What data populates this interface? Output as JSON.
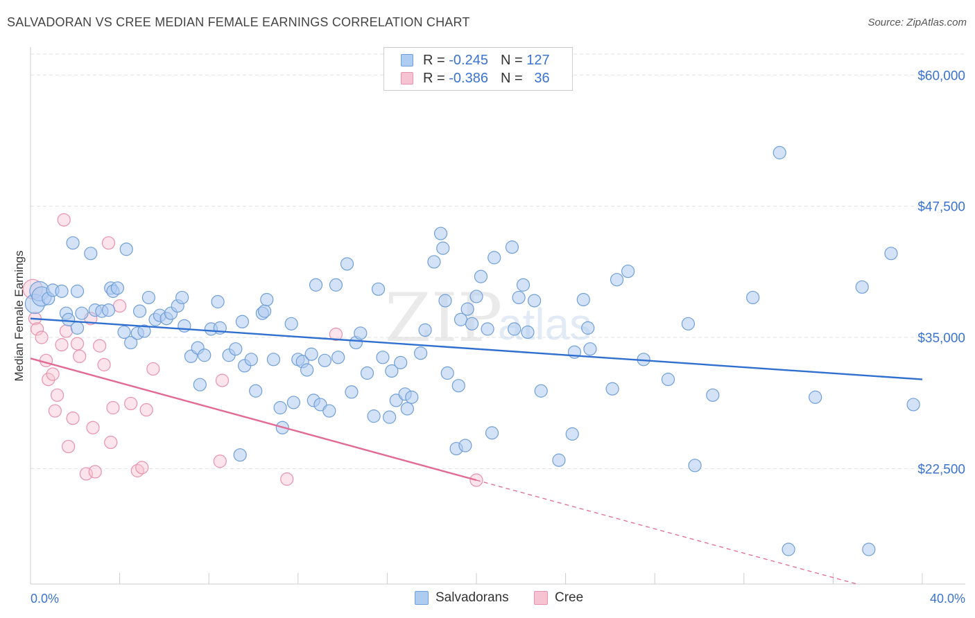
{
  "title": "SALVADORAN VS CREE MEDIAN FEMALE EARNINGS CORRELATION CHART",
  "source": "Source: ZipAtlas.com",
  "watermark": {
    "zip": "ZIP",
    "atlas": "atlas"
  },
  "colors": {
    "blue_fill": "#aecbf0",
    "blue_stroke": "#6f9fd8",
    "blue_line": "#2f6fcf",
    "pink_fill": "#f6c3d3",
    "pink_stroke": "#e991ad",
    "pink_line": "#e26a93",
    "tick_text": "#3a73d0",
    "grid": "#e1e1e1"
  },
  "legend": {
    "rows": [
      {
        "r_label": "R =",
        "r_value": "-0.245",
        "n_label": "N =",
        "n_value": "127",
        "color": "blue"
      },
      {
        "r_label": "R =",
        "r_value": "-0.386",
        "n_label": "N =",
        "n_value": "36",
        "color": "pink"
      }
    ]
  },
  "bottom_legend": {
    "salvadorans": "Salvadorans",
    "cree": "Cree"
  },
  "chart_data": {
    "type": "scatter",
    "title": "SALVADORAN VS CREE MEDIAN FEMALE EARNINGS CORRELATION CHART",
    "xlabel": "",
    "ylabel": "Median Female Earnings",
    "xlim": [
      0,
      40
    ],
    "ylim": [
      11500,
      62000
    ],
    "x_tick_labels": [
      "0.0%",
      "40.0%"
    ],
    "y_ticks": [
      22500,
      35000,
      47500,
      60000
    ],
    "y_tick_labels": [
      "$22,500",
      "$35,000",
      "$47,500",
      "$60,000"
    ],
    "grid": true,
    "legend_position": "top-center",
    "series": [
      {
        "name": "Salvadorans",
        "r": -0.245,
        "n": 127,
        "trend": {
          "x": [
            0,
            40
          ],
          "y": [
            36800,
            31000
          ]
        },
        "points": [
          [
            0.2,
            38200
          ],
          [
            0.4,
            39400
          ],
          [
            0.5,
            38900
          ],
          [
            0.8,
            38700
          ],
          [
            1.0,
            39500
          ],
          [
            1.4,
            39400
          ],
          [
            1.6,
            37300
          ],
          [
            1.7,
            36700
          ],
          [
            1.9,
            44000
          ],
          [
            2.1,
            35900
          ],
          [
            2.1,
            39400
          ],
          [
            2.3,
            37300
          ],
          [
            2.7,
            43000
          ],
          [
            2.9,
            37600
          ],
          [
            3.2,
            37500
          ],
          [
            3.5,
            37600
          ],
          [
            3.6,
            39700
          ],
          [
            3.7,
            39400
          ],
          [
            3.9,
            39700
          ],
          [
            4.2,
            35500
          ],
          [
            4.3,
            43400
          ],
          [
            4.5,
            34500
          ],
          [
            4.8,
            35400
          ],
          [
            4.9,
            37500
          ],
          [
            5.1,
            35600
          ],
          [
            5.3,
            38800
          ],
          [
            5.6,
            36700
          ],
          [
            5.8,
            37100
          ],
          [
            6.1,
            36800
          ],
          [
            6.3,
            37300
          ],
          [
            6.6,
            38000
          ],
          [
            6.8,
            38800
          ],
          [
            6.9,
            36100
          ],
          [
            7.2,
            33200
          ],
          [
            7.5,
            34000
          ],
          [
            7.6,
            30500
          ],
          [
            7.8,
            33300
          ],
          [
            8.1,
            35800
          ],
          [
            8.4,
            38400
          ],
          [
            8.5,
            35900
          ],
          [
            8.9,
            33300
          ],
          [
            9.2,
            33900
          ],
          [
            9.4,
            23800
          ],
          [
            9.5,
            36500
          ],
          [
            9.6,
            32300
          ],
          [
            9.9,
            32900
          ],
          [
            10.1,
            29900
          ],
          [
            10.4,
            37300
          ],
          [
            10.5,
            37500
          ],
          [
            10.6,
            38600
          ],
          [
            10.9,
            32900
          ],
          [
            11.2,
            28300
          ],
          [
            11.3,
            26400
          ],
          [
            11.7,
            36300
          ],
          [
            11.8,
            28800
          ],
          [
            12.0,
            32900
          ],
          [
            12.2,
            32700
          ],
          [
            12.4,
            31900
          ],
          [
            12.6,
            33400
          ],
          [
            12.7,
            29000
          ],
          [
            12.8,
            40000
          ],
          [
            13.0,
            28600
          ],
          [
            13.2,
            32800
          ],
          [
            13.4,
            28000
          ],
          [
            13.7,
            40000
          ],
          [
            13.8,
            33100
          ],
          [
            14.2,
            42000
          ],
          [
            14.4,
            29800
          ],
          [
            14.6,
            34500
          ],
          [
            14.8,
            35400
          ],
          [
            15.1,
            31600
          ],
          [
            15.4,
            27500
          ],
          [
            15.6,
            39600
          ],
          [
            15.8,
            33100
          ],
          [
            16.1,
            27400
          ],
          [
            16.2,
            31800
          ],
          [
            16.4,
            29000
          ],
          [
            16.6,
            32600
          ],
          [
            16.8,
            29600
          ],
          [
            16.9,
            28200
          ],
          [
            17.1,
            29300
          ],
          [
            17.5,
            33500
          ],
          [
            17.7,
            35700
          ],
          [
            18.1,
            42200
          ],
          [
            18.4,
            44900
          ],
          [
            18.5,
            43500
          ],
          [
            18.6,
            38500
          ],
          [
            18.7,
            31600
          ],
          [
            19.1,
            24400
          ],
          [
            19.2,
            30400
          ],
          [
            19.3,
            36700
          ],
          [
            19.5,
            24700
          ],
          [
            19.6,
            37700
          ],
          [
            19.8,
            36300
          ],
          [
            20.0,
            38900
          ],
          [
            20.2,
            40800
          ],
          [
            20.5,
            35800
          ],
          [
            20.7,
            25900
          ],
          [
            20.8,
            42600
          ],
          [
            21.6,
            43600
          ],
          [
            21.7,
            35800
          ],
          [
            21.9,
            38800
          ],
          [
            22.1,
            40000
          ],
          [
            22.3,
            35500
          ],
          [
            22.6,
            38500
          ],
          [
            22.9,
            29900
          ],
          [
            23.7,
            23300
          ],
          [
            24.3,
            25800
          ],
          [
            24.4,
            33600
          ],
          [
            24.8,
            38600
          ],
          [
            25.0,
            35900
          ],
          [
            25.1,
            33900
          ],
          [
            26.1,
            30100
          ],
          [
            26.3,
            40500
          ],
          [
            26.8,
            41300
          ],
          [
            27.5,
            32900
          ],
          [
            28.6,
            31000
          ],
          [
            29.5,
            36300
          ],
          [
            29.8,
            22800
          ],
          [
            30.6,
            29500
          ],
          [
            32.4,
            38800
          ],
          [
            33.6,
            52600
          ],
          [
            34.0,
            14800
          ],
          [
            35.2,
            29300
          ],
          [
            37.6,
            14800
          ],
          [
            37.3,
            39800
          ],
          [
            38.6,
            43000
          ],
          [
            39.6,
            28600
          ]
        ]
      },
      {
        "name": "Cree",
        "r": -0.386,
        "n": 36,
        "trend": {
          "x": [
            0,
            20
          ],
          "y": [
            33000,
            21400
          ]
        },
        "trend_dashed_extension": {
          "x": [
            20,
            40
          ],
          "y": [
            21400,
            9800
          ]
        },
        "points": [
          [
            0.1,
            39600
          ],
          [
            0.2,
            36800
          ],
          [
            0.3,
            35800
          ],
          [
            0.5,
            35000
          ],
          [
            0.7,
            32800
          ],
          [
            0.8,
            31000
          ],
          [
            1.0,
            31500
          ],
          [
            1.1,
            28000
          ],
          [
            1.2,
            29500
          ],
          [
            1.4,
            34300
          ],
          [
            1.5,
            46200
          ],
          [
            1.6,
            35600
          ],
          [
            1.7,
            24600
          ],
          [
            1.9,
            27300
          ],
          [
            2.1,
            34400
          ],
          [
            2.2,
            33200
          ],
          [
            2.5,
            22000
          ],
          [
            2.7,
            36800
          ],
          [
            2.8,
            26400
          ],
          [
            2.9,
            22200
          ],
          [
            3.1,
            34200
          ],
          [
            3.3,
            32400
          ],
          [
            3.5,
            44000
          ],
          [
            3.6,
            25000
          ],
          [
            3.7,
            28300
          ],
          [
            4.0,
            38000
          ],
          [
            4.5,
            28700
          ],
          [
            4.8,
            22300
          ],
          [
            5.0,
            22600
          ],
          [
            5.2,
            28100
          ],
          [
            5.5,
            32000
          ],
          [
            8.5,
            23200
          ],
          [
            8.6,
            30900
          ],
          [
            11.5,
            21500
          ],
          [
            13.7,
            35300
          ],
          [
            20.0,
            21400
          ]
        ]
      }
    ]
  }
}
